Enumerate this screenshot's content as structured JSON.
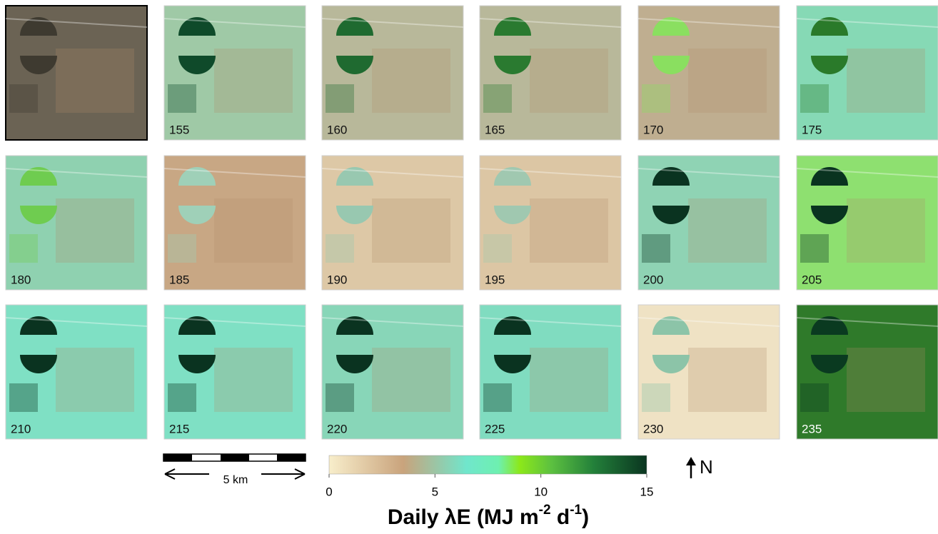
{
  "panels": [
    {
      "label": null,
      "color": "#6b6354",
      "field_color": "#3e3a30"
    },
    {
      "label": "155",
      "color": "#9fc9a6",
      "field_color": "#0f4a2a"
    },
    {
      "label": "160",
      "color": "#b8b89a",
      "field_color": "#1f6a30"
    },
    {
      "label": "165",
      "color": "#b8b89a",
      "field_color": "#2a7a30"
    },
    {
      "label": "170",
      "color": "#bfae90",
      "field_color": "#8adf60"
    },
    {
      "label": "175",
      "color": "#86d9b5",
      "field_color": "#2a7a2a"
    },
    {
      "label": "180",
      "color": "#8fd1b0",
      "field_color": "#6fcc50"
    },
    {
      "label": "185",
      "color": "#c8a784",
      "field_color": "#9fd0b8"
    },
    {
      "label": "190",
      "color": "#ddc8a6",
      "field_color": "#98c8b0"
    },
    {
      "label": "195",
      "color": "#dcc6a4",
      "field_color": "#a0c8b0"
    },
    {
      "label": "200",
      "color": "#8fd3b4",
      "field_color": "#0a3320"
    },
    {
      "label": "205",
      "color": "#8ee070",
      "field_color": "#0a3320"
    },
    {
      "label": "210",
      "color": "#7fe0c4",
      "field_color": "#0a3320"
    },
    {
      "label": "215",
      "color": "#7fe0c4",
      "field_color": "#0a3320"
    },
    {
      "label": "220",
      "color": "#88d6b8",
      "field_color": "#0a3320"
    },
    {
      "label": "225",
      "color": "#80dcc0",
      "field_color": "#0a3320"
    },
    {
      "label": "230",
      "color": "#efe2c4",
      "field_color": "#8cc4a8"
    },
    {
      "label": "235",
      "color": "#2f7a2a",
      "field_color": "#0a3a20",
      "label_color": "#ffffff"
    }
  ],
  "scale_bar": {
    "label": "5 km"
  },
  "north": {
    "label": "N"
  },
  "colorbar": {
    "lim": [
      0,
      15
    ],
    "ticks": [
      0,
      5,
      10,
      15
    ],
    "stops": [
      {
        "value": 0,
        "color": "#f8eecb"
      },
      {
        "value": 3.5,
        "color": "#c9a37c"
      },
      {
        "value": 6.5,
        "color": "#70e6cc"
      },
      {
        "value": 8,
        "color": "#6ef0b0"
      },
      {
        "value": 9,
        "color": "#8ce81a"
      },
      {
        "value": 10.5,
        "color": "#5cc040"
      },
      {
        "value": 12.5,
        "color": "#23803a"
      },
      {
        "value": 15,
        "color": "#0a3520"
      }
    ]
  },
  "title": {
    "parts": [
      "Daily λE (MJ m",
      "-2",
      " d",
      "-1",
      ")"
    ]
  }
}
